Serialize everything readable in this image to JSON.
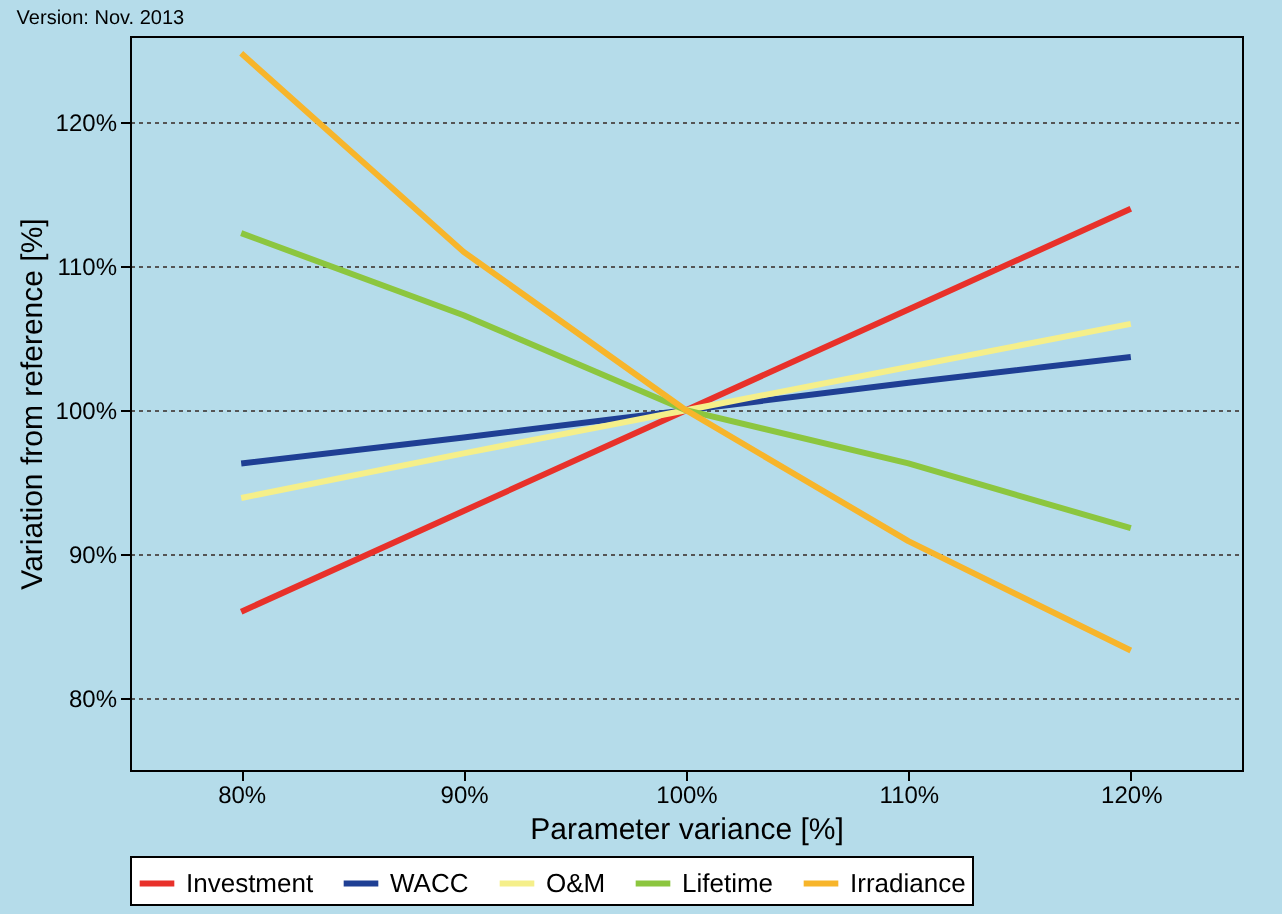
{
  "chart_data": {
    "type": "line",
    "xlabel": "Parameter variance [%]",
    "ylabel": "Variation from reference [%]",
    "annotations": [
      "Version: Nov. 2013"
    ],
    "x": [
      80,
      90,
      100,
      110,
      120
    ],
    "series": [
      {
        "name": "Investment",
        "color": "#e8312a",
        "values": [
          86,
          93,
          100,
          107,
          114
        ]
      },
      {
        "name": "WACC",
        "color": "#1f3f94",
        "values": [
          96.3,
          98.1,
          100,
          101.9,
          103.7
        ]
      },
      {
        "name": "O&M",
        "color": "#f5ef8a",
        "values": [
          93.9,
          97,
          100,
          103,
          106
        ]
      },
      {
        "name": "Lifetime",
        "color": "#8cc63f",
        "values": [
          112.3,
          106.6,
          100,
          96.3,
          91.8
        ]
      },
      {
        "name": "Irradiance",
        "color": "#f7b52b",
        "values": [
          124.8,
          111,
          100,
          90.9,
          83.3
        ]
      }
    ],
    "xlim": [
      75,
      125
    ],
    "xticks": [
      {
        "value": 80,
        "label": "80%"
      },
      {
        "value": 90,
        "label": "90%"
      },
      {
        "value": 100,
        "label": "100%"
      },
      {
        "value": 110,
        "label": "110%"
      },
      {
        "value": 120,
        "label": "120%"
      }
    ],
    "ylim": [
      75,
      126
    ],
    "yticks": [
      {
        "value": 80,
        "label": "80%"
      },
      {
        "value": 90,
        "label": "90%"
      },
      {
        "value": 100,
        "label": "100%"
      },
      {
        "value": 110,
        "label": "110%"
      },
      {
        "value": 120,
        "label": "120%"
      }
    ],
    "grid": "y",
    "legend": "bottom",
    "line_style": "solid"
  }
}
